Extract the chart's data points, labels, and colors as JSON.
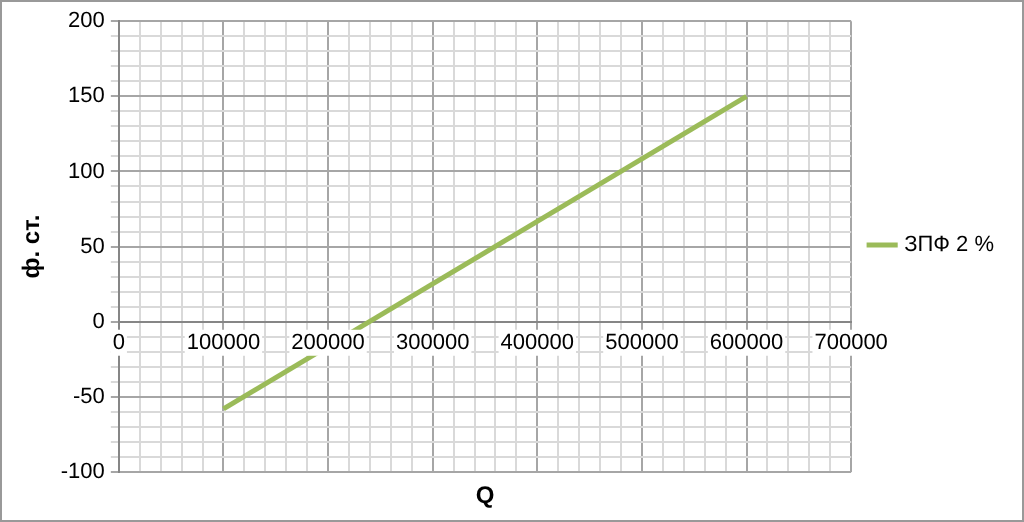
{
  "chart_data": {
    "type": "line",
    "xlabel": "Q",
    "ylabel": "ф. ст.",
    "legend": "right",
    "grid": true,
    "marker": "none",
    "line_style": "solid",
    "series": [
      {
        "name": "ЗПФ 2 %",
        "color": "#9bbb59",
        "x": [
          100000,
          600000
        ],
        "values": [
          -58,
          150
        ]
      }
    ],
    "xlim": [
      0,
      700000
    ],
    "xticks": [
      0,
      {
        "value": 20000,
        "label": null
      },
      {
        "value": 40000,
        "label": null
      },
      {
        "value": 60000,
        "label": null
      },
      {
        "value": 80000,
        "label": null
      },
      100000,
      {
        "value": 120000,
        "label": null
      },
      {
        "value": 140000,
        "label": null
      },
      {
        "value": 160000,
        "label": null
      },
      {
        "value": 180000,
        "label": null
      },
      200000,
      {
        "value": 220000,
        "label": null
      },
      {
        "value": 240000,
        "label": null
      },
      {
        "value": 260000,
        "label": null
      },
      {
        "value": 280000,
        "label": null
      },
      300000,
      {
        "value": 320000,
        "label": null
      },
      {
        "value": 340000,
        "label": null
      },
      {
        "value": 360000,
        "label": null
      },
      {
        "value": 380000,
        "label": null
      },
      400000,
      {
        "value": 420000,
        "label": null
      },
      {
        "value": 440000,
        "label": null
      },
      {
        "value": 460000,
        "label": null
      },
      {
        "value": 480000,
        "label": null
      },
      500000,
      {
        "value": 520000,
        "label": null
      },
      {
        "value": 540000,
        "label": null
      },
      {
        "value": 560000,
        "label": null
      },
      {
        "value": 580000,
        "label": null
      },
      600000,
      {
        "value": 620000,
        "label": null
      },
      {
        "value": 640000,
        "label": null
      },
      {
        "value": 660000,
        "label": null
      },
      {
        "value": 680000,
        "label": null
      },
      700000
    ],
    "ylim": [
      -100,
      200
    ],
    "yticks": [
      -100,
      {
        "value": -90,
        "label": null
      },
      {
        "value": -80,
        "label": null
      },
      {
        "value": -70,
        "label": null
      },
      {
        "value": -60,
        "label": null
      },
      -50,
      {
        "value": -40,
        "label": null
      },
      {
        "value": -30,
        "label": null
      },
      {
        "value": -20,
        "label": null
      },
      {
        "value": -10,
        "label": null
      },
      0,
      {
        "value": 10,
        "label": null
      },
      {
        "value": 20,
        "label": null
      },
      {
        "value": 30,
        "label": null
      },
      {
        "value": 40,
        "label": null
      },
      50,
      {
        "value": 60,
        "label": null
      },
      {
        "value": 70,
        "label": null
      },
      {
        "value": 80,
        "label": null
      },
      {
        "value": 90,
        "label": null
      },
      100,
      {
        "value": 110,
        "label": null
      },
      {
        "value": 120,
        "label": null
      },
      {
        "value": 130,
        "label": null
      },
      {
        "value": 140,
        "label": null
      },
      150,
      {
        "value": 160,
        "label": null
      },
      {
        "value": 170,
        "label": null
      },
      {
        "value": 180,
        "label": null
      },
      {
        "value": 190,
        "label": null
      },
      200
    ]
  }
}
